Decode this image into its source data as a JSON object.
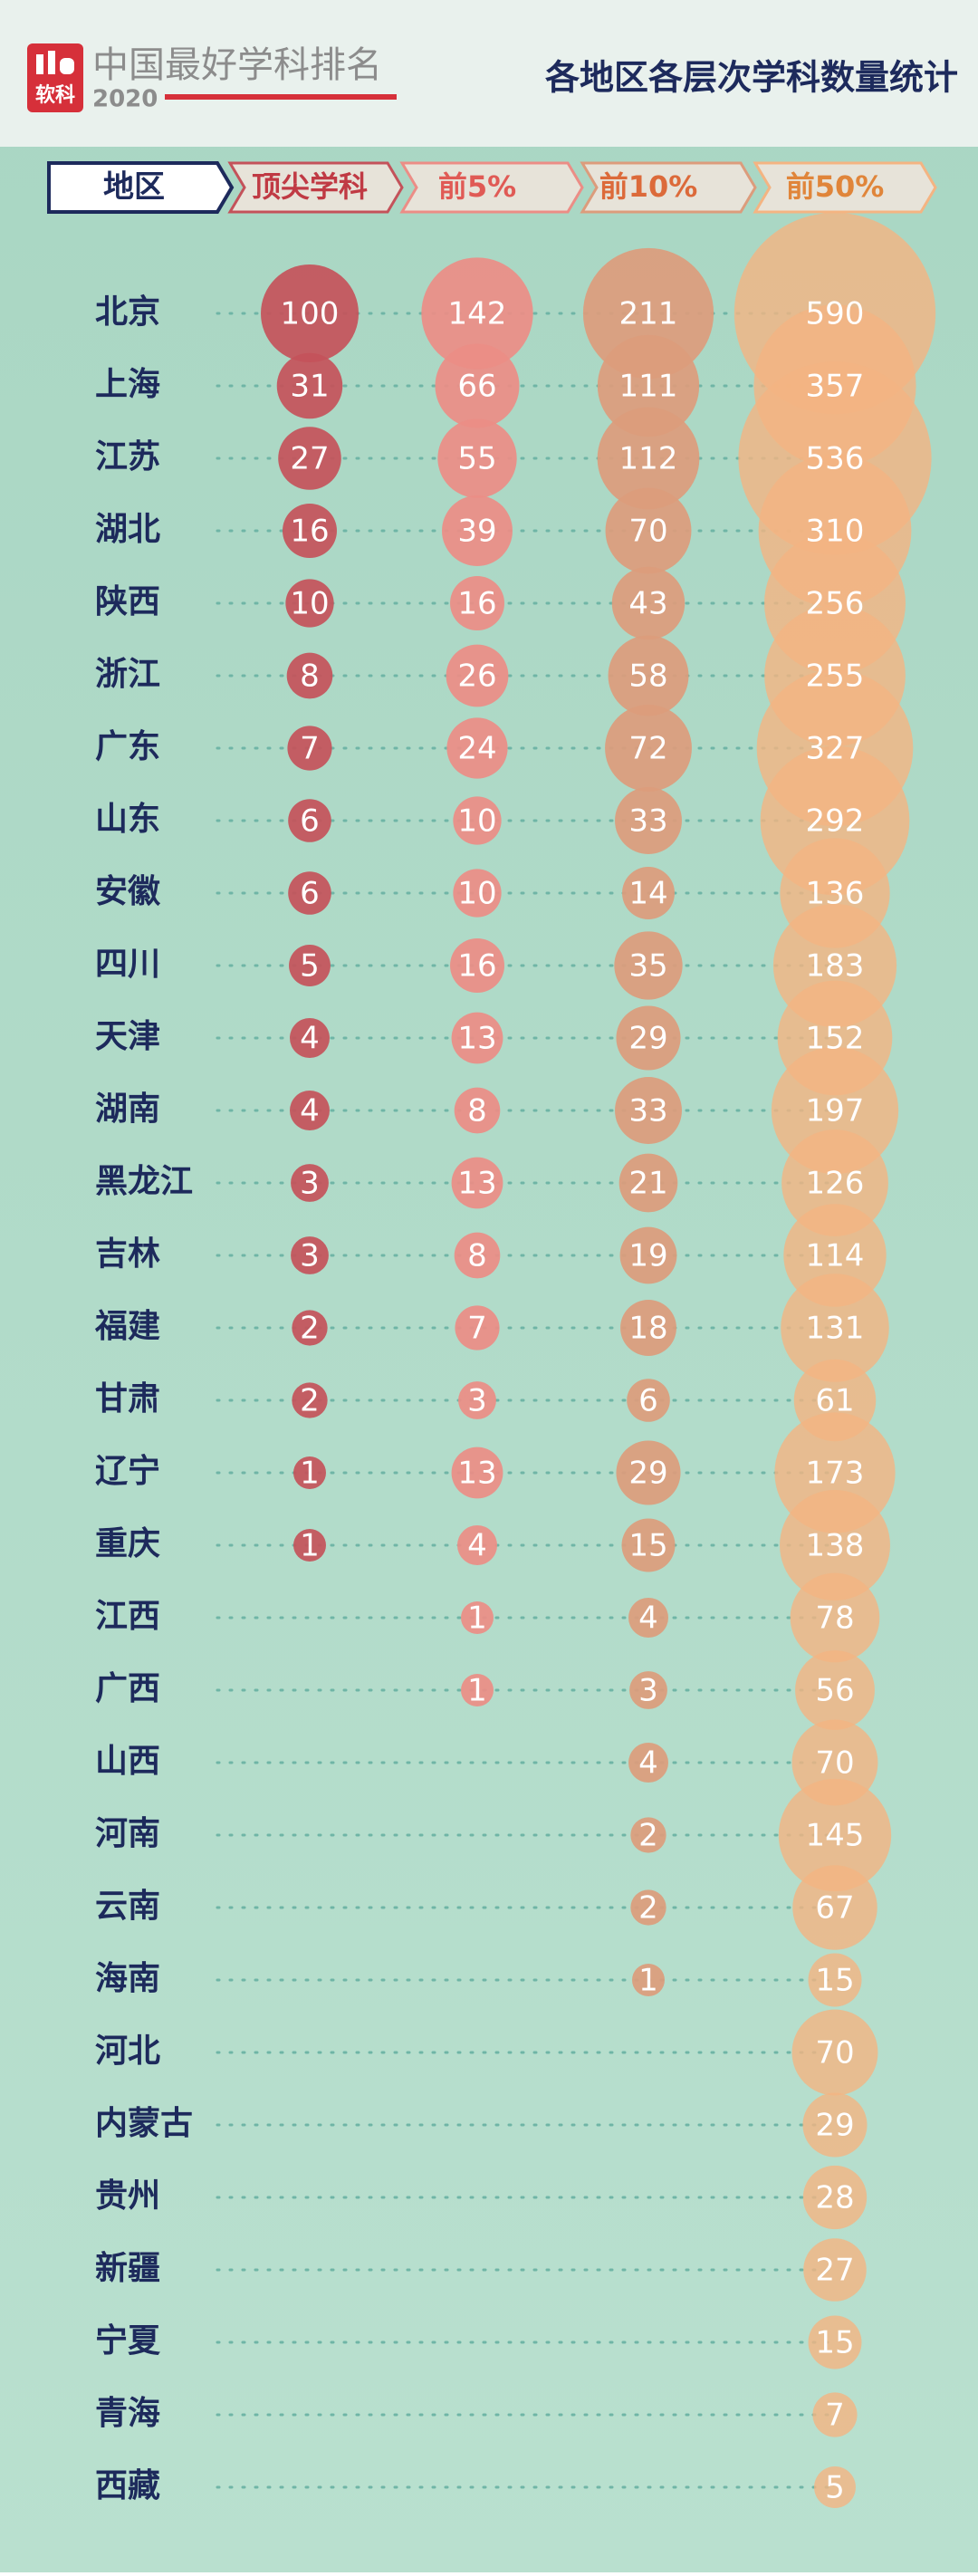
{
  "header": {
    "brand": "中国最好学科排名",
    "logo": "软科",
    "year": "2020"
  },
  "chart_data": {
    "type": "bubble",
    "title": "各地区各层次学科数量统计",
    "category_label": "地区",
    "categories": [
      "北京",
      "上海",
      "江苏",
      "湖北",
      "陕西",
      "浙江",
      "广东",
      "山东",
      "安徽",
      "四川",
      "天津",
      "湖南",
      "黑龙江",
      "吉林",
      "福建",
      "甘肃",
      "辽宁",
      "重庆",
      "江西",
      "广西",
      "山西",
      "河南",
      "云南",
      "海南",
      "河北",
      "内蒙古",
      "贵州",
      "新疆",
      "宁夏",
      "青海",
      "西藏"
    ],
    "series": [
      {
        "name": "顶尖学科",
        "color": "#c4525a",
        "values": [
          100,
          31,
          27,
          16,
          10,
          8,
          7,
          6,
          6,
          5,
          4,
          4,
          3,
          3,
          2,
          2,
          1,
          1,
          null,
          null,
          null,
          null,
          null,
          null,
          null,
          null,
          null,
          null,
          null,
          null,
          null
        ]
      },
      {
        "name": "前5%",
        "color": "#ec8d86",
        "values": [
          142,
          66,
          55,
          39,
          16,
          26,
          24,
          10,
          10,
          16,
          13,
          8,
          13,
          8,
          7,
          3,
          13,
          4,
          1,
          1,
          null,
          null,
          null,
          null,
          null,
          null,
          null,
          null,
          null,
          null,
          null
        ]
      },
      {
        "name": "前10%",
        "color": "#dc9c7c",
        "values": [
          211,
          111,
          112,
          70,
          43,
          58,
          72,
          33,
          14,
          35,
          29,
          33,
          21,
          19,
          18,
          6,
          29,
          15,
          4,
          3,
          4,
          2,
          2,
          1,
          null,
          null,
          null,
          null,
          null,
          null,
          null
        ]
      },
      {
        "name": "前50%",
        "color": "#f4b482",
        "values": [
          590,
          357,
          536,
          310,
          256,
          255,
          327,
          292,
          136,
          183,
          152,
          197,
          126,
          114,
          131,
          61,
          173,
          138,
          78,
          56,
          70,
          145,
          67,
          15,
          70,
          29,
          28,
          27,
          15,
          7,
          5
        ]
      }
    ]
  }
}
